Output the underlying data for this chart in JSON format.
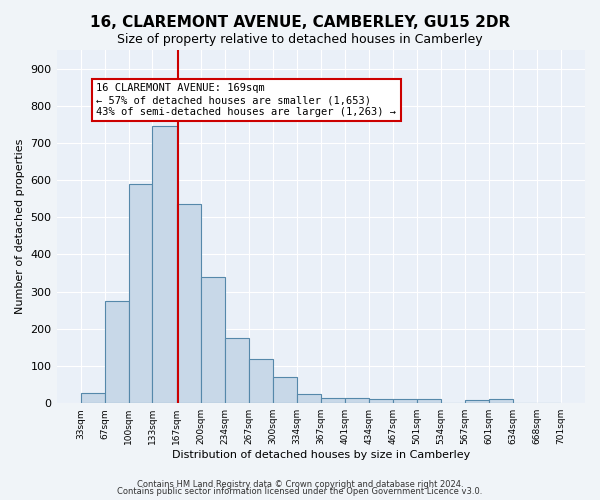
{
  "title": "16, CLAREMONT AVENUE, CAMBERLEY, GU15 2DR",
  "subtitle": "Size of property relative to detached houses in Camberley",
  "xlabel": "Distribution of detached houses by size in Camberley",
  "ylabel": "Number of detached properties",
  "bin_labels": [
    "33sqm",
    "67sqm",
    "100sqm",
    "133sqm",
    "167sqm",
    "200sqm",
    "234sqm",
    "267sqm",
    "300sqm",
    "334sqm",
    "367sqm",
    "401sqm",
    "434sqm",
    "467sqm",
    "501sqm",
    "534sqm",
    "567sqm",
    "601sqm",
    "634sqm",
    "668sqm",
    "701sqm"
  ],
  "bin_edges": [
    33,
    67,
    100,
    133,
    167,
    200,
    234,
    267,
    300,
    334,
    367,
    401,
    434,
    467,
    501,
    534,
    567,
    601,
    634,
    668,
    701
  ],
  "bar_heights": [
    27,
    275,
    590,
    745,
    535,
    340,
    175,
    120,
    70,
    25,
    13,
    15,
    12,
    10,
    10,
    0,
    8,
    10,
    0,
    0,
    0
  ],
  "bar_color": "#c8d8e8",
  "bar_edgecolor": "#5588aa",
  "vline_x": 169,
  "vline_color": "#cc0000",
  "annotation_text": "16 CLAREMONT AVENUE: 169sqm\n← 57% of detached houses are smaller (1,653)\n43% of semi-detached houses are larger (1,263) →",
  "annotation_box_edgecolor": "#cc0000",
  "annotation_box_facecolor": "#ffffff",
  "ylim": [
    0,
    950
  ],
  "yticks": [
    0,
    100,
    200,
    300,
    400,
    500,
    600,
    700,
    800,
    900
  ],
  "footer_line1": "Contains HM Land Registry data © Crown copyright and database right 2024.",
  "footer_line2": "Contains public sector information licensed under the Open Government Licence v3.0.",
  "bg_color": "#f0f4f8",
  "plot_bg_color": "#eaf0f8"
}
